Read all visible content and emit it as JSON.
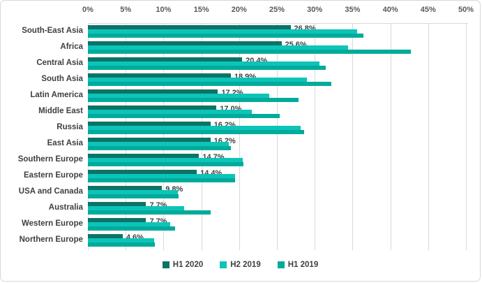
{
  "chart_data": {
    "type": "bar",
    "orientation": "horizontal",
    "title": "",
    "categories": [
      "South-East Asia",
      "Africa",
      "Central Asia",
      "South Asia",
      "Latin America",
      "Middle East",
      "Russia",
      "East Asia",
      "Southern Europe",
      "Eastern Europe",
      "USA and Canada",
      "Australia",
      "Western Europe",
      "Northern Europe"
    ],
    "series": [
      {
        "name": "H1 2020",
        "color": "#0d7368",
        "values": [
          26.8,
          25.6,
          20.4,
          18.9,
          17.2,
          17.0,
          16.2,
          16.2,
          14.7,
          14.4,
          9.8,
          7.7,
          7.7,
          4.6
        ],
        "data_labels": [
          "26.8%",
          "25.6%",
          "20.4%",
          "18.9%",
          "17.2%",
          "17.0%",
          "16.2%",
          "16.2%",
          "14.7%",
          "14.4%",
          "9.8%",
          "7.7%",
          "7.7%",
          "4.6%"
        ]
      },
      {
        "name": "H2 2019",
        "color": "#0cc5b8",
        "values": [
          35.6,
          34.4,
          30.6,
          29.0,
          24.0,
          21.7,
          28.1,
          18.6,
          20.5,
          19.5,
          11.9,
          12.7,
          10.9,
          8.8
        ]
      },
      {
        "name": "H1 2019",
        "color": "#00ab9b",
        "values": [
          36.4,
          42.7,
          31.5,
          32.2,
          27.9,
          25.4,
          28.6,
          18.9,
          20.6,
          19.5,
          12.0,
          16.2,
          11.5,
          8.9
        ]
      }
    ],
    "x_axis": {
      "position": "top",
      "min": 0,
      "max": 50,
      "step": 5,
      "tick_labels": [
        "0%",
        "5%",
        "10%",
        "15%",
        "20%",
        "25%",
        "30%",
        "35%",
        "40%",
        "45%",
        "50%"
      ]
    },
    "grid": true,
    "legend_position": "bottom"
  },
  "colors": {
    "background": "#ffffff",
    "border": "#d7d7d7",
    "gridline": "#d9d9d9",
    "tick_label": "#595959",
    "category_label": "#404040",
    "data_label": "#404040",
    "legend_label": "#404040"
  }
}
